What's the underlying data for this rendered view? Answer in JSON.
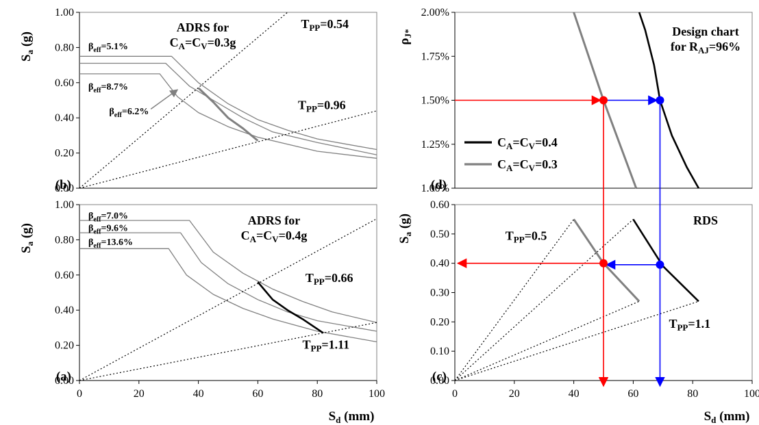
{
  "chart_data": [
    {
      "id": "b",
      "type": "line",
      "panel_label": "(b)",
      "title_lines": [
        "ADRS for",
        "C<sub>A</sub>=C<sub>V</sub>=0.3g"
      ],
      "xlabel": "",
      "ylabel": "S<sub>a</sub> (g)",
      "xlim": [
        0,
        100
      ],
      "ylim": [
        0,
        1
      ],
      "x_ticks": [],
      "y_ticks": [
        0,
        0.2,
        0.4,
        0.6,
        0.8,
        1.0
      ],
      "y_tick_labels": [
        "0.00",
        "0.20",
        "0.40",
        "0.60",
        "0.80",
        "1.00"
      ],
      "series": [
        {
          "style": "gray",
          "points": [
            [
              0,
              0.75
            ],
            [
              31,
              0.75
            ],
            [
              40,
              0.6
            ],
            [
              50,
              0.48
            ],
            [
              60,
              0.39
            ],
            [
              70,
              0.33
            ],
            [
              80,
              0.28
            ],
            [
              90,
              0.25
            ],
            [
              100,
              0.22
            ]
          ]
        },
        {
          "style": "gray",
          "points": [
            [
              0,
              0.71
            ],
            [
              29,
              0.71
            ],
            [
              37,
              0.58
            ],
            [
              45,
              0.5
            ],
            [
              55,
              0.4
            ],
            [
              65,
              0.32
            ],
            [
              80,
              0.26
            ],
            [
              100,
              0.19
            ]
          ]
        },
        {
          "style": "gray",
          "points": [
            [
              0,
              0.65
            ],
            [
              27,
              0.65
            ],
            [
              33,
              0.52
            ],
            [
              40,
              0.43
            ],
            [
              50,
              0.35
            ],
            [
              60,
              0.29
            ],
            [
              80,
              0.21
            ],
            [
              100,
              0.17
            ]
          ]
        },
        {
          "style": "gray-thick",
          "points": [
            [
              40,
              0.57
            ],
            [
              45,
              0.49
            ],
            [
              50,
              0.4
            ],
            [
              55,
              0.34
            ],
            [
              60,
              0.27
            ]
          ]
        },
        {
          "style": "dotted",
          "points": [
            [
              0,
              0
            ],
            [
              70,
              1.0
            ]
          ]
        },
        {
          "style": "dotted",
          "points": [
            [
              0,
              0
            ],
            [
              100,
              0.44
            ]
          ]
        }
      ],
      "annotations": [
        {
          "text": "T<sub>PP</sub>=0.54",
          "x": 74.5,
          "y": 0.91
        },
        {
          "text": "T<sub>PP</sub>=0.96",
          "x": 73.5,
          "y": 0.45
        },
        {
          "text": "β<sub>eff</sub>=5.1%",
          "x": 3,
          "y": 0.79,
          "small": true
        },
        {
          "text": "β<sub>eff</sub>=8.7%",
          "x": 3,
          "y": 0.56,
          "small": true
        },
        {
          "text": "β<sub>eff</sub>=6.2%",
          "x": 10,
          "y": 0.42,
          "small": true
        }
      ],
      "arrows": [
        {
          "from": [
            24,
            0.45
          ],
          "to": [
            33,
            0.56
          ],
          "color": "#808080"
        }
      ]
    },
    {
      "id": "a",
      "type": "line",
      "panel_label": "(a)",
      "title_lines": [
        "ADRS for",
        "C<sub>A</sub>=C<sub>V</sub>=0.4g"
      ],
      "xlabel": "S<sub>d</sub> (mm)",
      "ylabel": "S<sub>a</sub> (g)",
      "xlim": [
        0,
        100
      ],
      "ylim": [
        0,
        1
      ],
      "x_ticks": [
        0,
        20,
        40,
        60,
        80,
        100
      ],
      "x_tick_labels": [
        "0",
        "20",
        "40",
        "60",
        "80",
        "100"
      ],
      "y_ticks": [
        0,
        0.2,
        0.4,
        0.6,
        0.8,
        1.0
      ],
      "y_tick_labels": [
        "0.00",
        "0.20",
        "0.40",
        "0.60",
        "0.80",
        "1.00"
      ],
      "series": [
        {
          "style": "gray",
          "points": [
            [
              0,
              0.91
            ],
            [
              37,
              0.91
            ],
            [
              45,
              0.73
            ],
            [
              55,
              0.61
            ],
            [
              65,
              0.52
            ],
            [
              75,
              0.45
            ],
            [
              85,
              0.39
            ],
            [
              100,
              0.33
            ]
          ]
        },
        {
          "style": "gray",
          "points": [
            [
              0,
              0.84
            ],
            [
              34,
              0.84
            ],
            [
              41,
              0.67
            ],
            [
              50,
              0.55
            ],
            [
              60,
              0.46
            ],
            [
              70,
              0.39
            ],
            [
              80,
              0.34
            ],
            [
              100,
              0.28
            ]
          ]
        },
        {
          "style": "gray",
          "points": [
            [
              0,
              0.75
            ],
            [
              30,
              0.75
            ],
            [
              36,
              0.6
            ],
            [
              45,
              0.49
            ],
            [
              55,
              0.41
            ],
            [
              65,
              0.35
            ],
            [
              80,
              0.28
            ],
            [
              100,
              0.22
            ]
          ]
        },
        {
          "style": "black-thick",
          "points": [
            [
              60,
              0.56
            ],
            [
              65,
              0.46
            ],
            [
              70,
              0.4
            ],
            [
              75,
              0.35
            ],
            [
              82,
              0.27
            ]
          ]
        },
        {
          "style": "dotted",
          "points": [
            [
              0,
              0
            ],
            [
              100,
              0.92
            ]
          ]
        },
        {
          "style": "dotted",
          "points": [
            [
              0,
              0
            ],
            [
              100,
              0.33
            ]
          ]
        }
      ],
      "annotations": [
        {
          "text": "T<sub>PP</sub>=0.66",
          "x": 76,
          "y": 0.56
        },
        {
          "text": "T<sub>PP</sub>=1.11",
          "x": 75,
          "y": 0.18
        },
        {
          "text": "β<sub>eff</sub>=7.0%",
          "x": 3,
          "y": 0.92,
          "small": true
        },
        {
          "text": "β<sub>eff</sub>=9.6%",
          "x": 3,
          "y": 0.85,
          "small": true
        },
        {
          "text": "β<sub>eff</sub>=13.6%",
          "x": 3,
          "y": 0.77,
          "small": true
        }
      ],
      "arrows": []
    },
    {
      "id": "d",
      "type": "line",
      "panel_label": "(d)",
      "title_lines": [
        "Design chart",
        "for R<sub>AJ</sub>=96%"
      ],
      "xlabel": "",
      "ylabel": "ρ<sub>J*</sub>",
      "xlim": [
        0,
        100
      ],
      "ylim": [
        1.0,
        2.0
      ],
      "x_ticks": [],
      "y_ticks": [
        1.0,
        1.25,
        1.5,
        1.75,
        2.0
      ],
      "y_tick_labels": [
        "1.00%",
        "1.25%",
        "1.50%",
        "1.75%",
        "2.00%"
      ],
      "series": [
        {
          "name": "C<sub>A</sub>=C<sub>V</sub>=0.4",
          "style": "black-thick",
          "points": [
            [
              62,
              2.0
            ],
            [
              64,
              1.9
            ],
            [
              67,
              1.7
            ],
            [
              69,
              1.5
            ],
            [
              73,
              1.3
            ],
            [
              78,
              1.12
            ],
            [
              82,
              1.0
            ]
          ]
        },
        {
          "name": "C<sub>A</sub>=C<sub>V</sub>=0.3",
          "style": "gray-thick",
          "points": [
            [
              40,
              2.0
            ],
            [
              50,
              1.5
            ],
            [
              61,
              1.0
            ]
          ]
        }
      ],
      "legend": [
        {
          "text": "C<sub>A</sub>=C<sub>V</sub>=0.4",
          "style": "black-thick"
        },
        {
          "text": "C<sub>A</sub>=C<sub>V</sub>=0.3",
          "style": "gray-thick"
        }
      ],
      "markers": [
        {
          "x": 50,
          "y": 1.5,
          "color": "#ff0000"
        },
        {
          "x": 69,
          "y": 1.5,
          "color": "#0000ff"
        }
      ],
      "annotations": [],
      "arrows": []
    },
    {
      "id": "c",
      "type": "line",
      "panel_label": "(c)",
      "title_lines": [
        "RDS"
      ],
      "xlabel": "S<sub>d</sub> (mm)",
      "ylabel": "S<sub>a</sub> (g)",
      "xlim": [
        0,
        100
      ],
      "ylim": [
        0,
        0.6
      ],
      "x_ticks": [
        0,
        20,
        40,
        60,
        80,
        100
      ],
      "x_tick_labels": [
        "0",
        "20",
        "40",
        "60",
        "80",
        "100"
      ],
      "y_ticks": [
        0,
        0.1,
        0.2,
        0.3,
        0.4,
        0.5,
        0.6
      ],
      "y_tick_labels": [
        "0.00",
        "0.10",
        "0.20",
        "0.30",
        "0.40",
        "0.50",
        "0.60"
      ],
      "series": [
        {
          "style": "gray-thick",
          "points": [
            [
              40,
              0.55
            ],
            [
              50,
              0.4
            ],
            [
              62,
              0.27
            ]
          ]
        },
        {
          "style": "black-thick",
          "points": [
            [
              60,
              0.55
            ],
            [
              65,
              0.47
            ],
            [
              70,
              0.39
            ],
            [
              76,
              0.33
            ],
            [
              82,
              0.27
            ]
          ]
        },
        {
          "style": "dotted",
          "points": [
            [
              0,
              0
            ],
            [
              40,
              0.55
            ]
          ]
        },
        {
          "style": "dotted",
          "points": [
            [
              0,
              0
            ],
            [
              60,
              0.55
            ]
          ]
        },
        {
          "style": "dotted",
          "points": [
            [
              0,
              0
            ],
            [
              62,
              0.27
            ]
          ]
        },
        {
          "style": "dotted",
          "points": [
            [
              0,
              0
            ],
            [
              82,
              0.27
            ]
          ]
        }
      ],
      "markers": [
        {
          "x": 50,
          "y": 0.4,
          "color": "#ff0000"
        },
        {
          "x": 69,
          "y": 0.395,
          "color": "#0000ff"
        }
      ],
      "annotations": [
        {
          "text": "T<sub>PP</sub>=0.5",
          "x": 17,
          "y": 0.48
        },
        {
          "text": "T<sub>PP</sub>=1.1",
          "x": 72,
          "y": 0.18
        }
      ],
      "arrows": []
    }
  ],
  "connectors": [
    {
      "color": "#ff0000",
      "from": [
        "d",
        0,
        1.5
      ],
      "to": [
        "d",
        49,
        1.5
      ]
    },
    {
      "color": "#ff0000",
      "from": [
        "d",
        50,
        1.5
      ],
      "to": [
        "c",
        50,
        0
      ],
      "vertical": true
    },
    {
      "color": "#ff0000",
      "from": [
        "c",
        50,
        0.4
      ],
      "to": [
        "c",
        1,
        0.4
      ]
    },
    {
      "color": "#0000ff",
      "from": [
        "d",
        50,
        1.5
      ],
      "to": [
        "d",
        68,
        1.5
      ]
    },
    {
      "color": "#0000ff",
      "from": [
        "d",
        69,
        1.5
      ],
      "to": [
        "c",
        69,
        0
      ],
      "vertical": true
    },
    {
      "color": "#0000ff",
      "from": [
        "c",
        69,
        0.395
      ],
      "to": [
        "c",
        51,
        0.395
      ]
    }
  ],
  "colors": {
    "gray": "#808080",
    "black": "#000000",
    "red": "#ff0000",
    "blue": "#0000ff"
  }
}
